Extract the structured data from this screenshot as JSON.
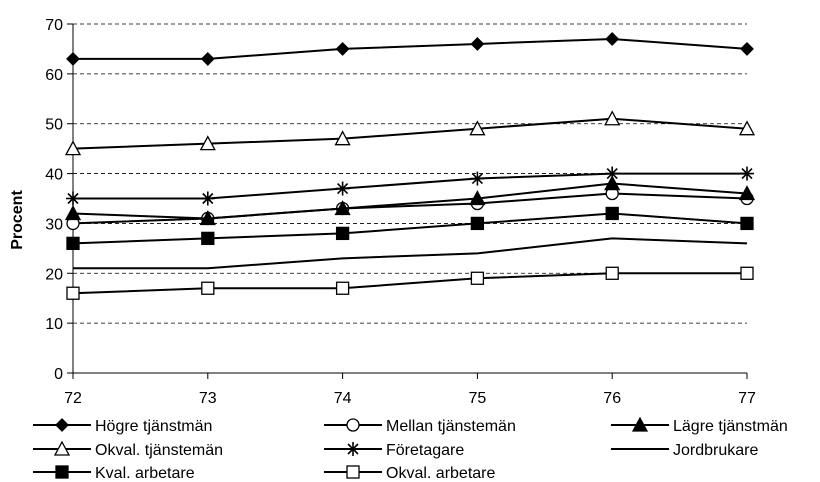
{
  "chart_data": {
    "type": "line",
    "title": "",
    "xlabel": "",
    "ylabel": "Procent",
    "x": [
      "72",
      "73",
      "74",
      "75",
      "76",
      "77"
    ],
    "ylim": [
      0,
      70
    ],
    "yticks": [
      "0",
      "10",
      "20",
      "30",
      "40",
      "50",
      "60",
      "70"
    ],
    "grid": "horizontal-dashed",
    "legend_position": "bottom",
    "series": [
      {
        "name": "Högre tjänstmän",
        "marker": "filled-diamond",
        "values": [
          63,
          63,
          65,
          66,
          67,
          65
        ]
      },
      {
        "name": "Mellan tjänstemän",
        "marker": "open-circle",
        "values": [
          30,
          31,
          33,
          34,
          36,
          35
        ]
      },
      {
        "name": "Lägre tjänstmän",
        "marker": "filled-triangle",
        "values": [
          32,
          31,
          33,
          35,
          38,
          36
        ]
      },
      {
        "name": "Okval. tjänstemän",
        "marker": "open-triangle",
        "values": [
          45,
          46,
          47,
          49,
          51,
          49
        ]
      },
      {
        "name": "Företagare",
        "marker": "star",
        "values": [
          35,
          35,
          37,
          39,
          40,
          40
        ]
      },
      {
        "name": "Jordbrukare",
        "marker": "none",
        "values": [
          21,
          21,
          23,
          24,
          27,
          26
        ]
      },
      {
        "name": "Kval. arbetare",
        "marker": "filled-square",
        "values": [
          26,
          27,
          28,
          30,
          32,
          30
        ]
      },
      {
        "name": "Okval. arbetare",
        "marker": "open-square",
        "values": [
          16,
          17,
          17,
          19,
          20,
          20
        ]
      }
    ]
  }
}
